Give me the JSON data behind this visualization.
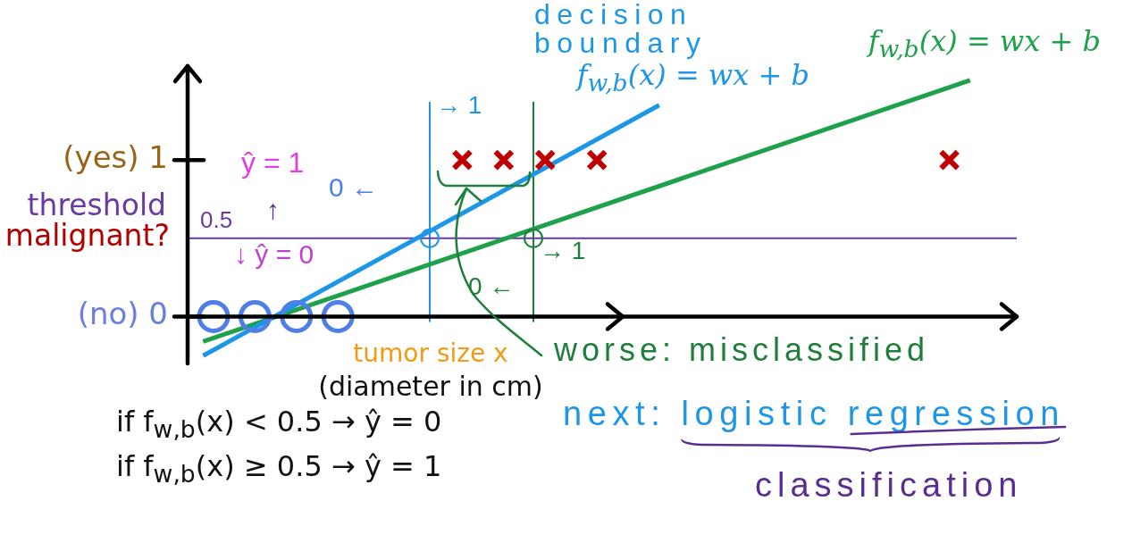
{
  "chart_data": {
    "type": "scatter",
    "xlabel": "tumor size x\n(diameter in cm)",
    "ylabel": "malignant?",
    "categories": [
      null,
      null,
      null,
      null,
      null,
      null,
      null,
      null,
      null,
      null,
      null,
      null,
      null,
      null,
      null,
      null,
      null,
      null,
      null,
      null,
      null,
      null,
      null,
      null,
      null,
      null,
      null,
      null,
      null,
      null,
      null,
      null,
      null,
      null,
      null,
      null,
      null,
      null,
      null,
      null,
      null,
      null,
      null,
      null,
      null,
      null,
      null,
      null,
      null,
      null,
      null,
      null,
      null,
      null,
      null,
      null,
      null,
      null,
      null,
      null,
      null,
      null,
      null,
      null,
      null,
      null,
      null,
      null,
      null,
      null,
      null,
      null,
      null,
      null,
      null,
      null,
      null,
      null,
      null,
      null
    ],
    "series": [
      {
        "type": "scatter",
        "color": "#4f7ee6",
        "marker": "circle",
        "values": [
          null,
          null,
          0,
          null,
          null,
          null,
          0,
          null,
          null,
          null,
          0,
          null,
          null,
          null,
          0,
          null,
          null,
          null,
          null,
          null,
          null,
          null,
          null,
          null,
          null,
          null,
          null,
          null,
          null,
          null,
          null,
          null,
          null,
          null,
          null,
          null,
          null,
          null,
          null,
          null,
          null,
          null,
          null,
          null,
          null,
          null,
          null,
          null,
          null,
          null,
          null,
          null,
          null,
          null,
          null,
          null,
          null,
          null,
          null,
          null,
          null,
          null,
          null,
          null,
          null,
          null,
          null,
          null,
          null,
          null,
          null,
          null,
          null,
          null,
          null,
          null,
          null,
          null,
          null,
          null
        ]
      },
      {
        "type": "scatter",
        "color": "#c00000",
        "marker": "cross",
        "values": [
          null,
          null,
          null,
          null,
          null,
          null,
          null,
          null,
          null,
          null,
          null,
          null,
          null,
          null,
          null,
          null,
          null,
          null,
          null,
          null,
          null,
          null,
          null,
          null,
          null,
          null,
          1,
          null,
          null,
          null,
          1,
          null,
          null,
          null,
          1,
          null,
          null,
          null,
          null,
          1,
          null,
          null,
          null,
          null,
          null,
          null,
          null,
          null,
          null,
          null,
          null,
          null,
          null,
          null,
          null,
          null,
          null,
          null,
          null,
          null,
          null,
          null,
          null,
          null,
          null,
          null,
          null,
          null,
          null,
          null,
          null,
          null,
          null,
          1,
          null,
          null,
          null,
          null,
          null,
          null
        ]
      },
      {
        "type": "line",
        "name": "f$_{w,b}$(x) = wx + b",
        "color": "#1e96e8",
        "marker": "none",
        "values": [
          null,
          -0.25,
          null,
          null,
          null,
          null,
          null,
          null,
          null,
          null,
          null,
          null,
          null,
          null,
          null,
          null,
          null,
          null,
          null,
          null,
          null,
          null,
          null,
          null,
          null,
          null,
          null,
          null,
          null,
          null,
          null,
          null,
          null,
          null,
          null,
          null,
          null,
          null,
          null,
          null,
          null,
          null,
          null,
          null,
          null,
          1.35,
          null,
          null,
          null,
          null,
          null,
          null,
          null,
          null,
          null,
          null,
          null,
          null,
          null,
          null,
          null,
          null,
          null,
          null,
          null,
          null,
          null,
          null,
          null,
          null,
          null,
          null,
          null,
          null,
          null,
          null,
          null,
          null,
          null,
          null
        ]
      },
      {
        "type": "line",
        "name": "f$_{w,b}$(x) = wx + b",
        "color": "#1fa04a",
        "marker": "none",
        "values": [
          null,
          -0.16,
          null,
          null,
          null,
          null,
          null,
          null,
          null,
          null,
          null,
          null,
          null,
          null,
          null,
          null,
          null,
          null,
          null,
          null,
          null,
          null,
          null,
          null,
          null,
          null,
          null,
          null,
          null,
          null,
          null,
          null,
          null,
          null,
          null,
          null,
          null,
          null,
          null,
          null,
          null,
          null,
          null,
          null,
          null,
          null,
          null,
          null,
          null,
          null,
          null,
          null,
          null,
          null,
          null,
          null,
          null,
          null,
          null,
          null,
          null,
          null,
          null,
          null,
          null,
          null,
          null,
          null,
          null,
          null,
          null,
          null,
          null,
          null,
          null,
          1.51,
          null,
          null,
          null,
          null
        ]
      }
    ],
    "ylim": [
      -0.3,
      1.6
    ],
    "yticks": [
      {
        "value": 0,
        "label": "(no) 0"
      },
      {
        "value": 1,
        "label": "(yes) 1"
      }
    ],
    "tick_labels": "y",
    "grid": false,
    "legend": false,
    "ref_lines": [
      {
        "axis": "y",
        "value": 0.5,
        "label": "0.5",
        "color": "#6b3aa0"
      }
    ],
    "annotations": [
      "decision boundary",
      "→ 1",
      "ŷ = 1",
      "0 ←",
      "threshold",
      "↑",
      "↓ ŷ = 0",
      "→ 1",
      "0 ←",
      "worse: misclassified",
      "if f$_{w,b}$(x) < 0.5 → ŷ = 0",
      "if f$_{w,b}$(x) ≥ 0.5 → ŷ = 1",
      "next: logistic regression",
      "classification"
    ]
  }
}
